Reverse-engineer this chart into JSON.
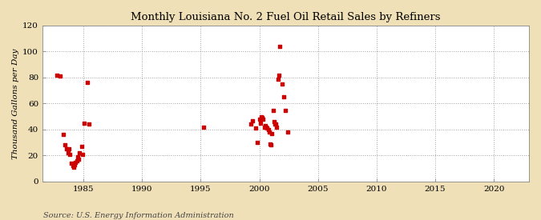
{
  "title": "Monthly Louisiana No. 2 Fuel Oil Retail Sales by Refiners",
  "ylabel": "Thousand Gallons per Day",
  "source": "Source: U.S. Energy Information Administration",
  "fig_bg_color": "#f0e0b8",
  "plot_bg_color": "#ffffff",
  "dot_color": "#cc0000",
  "xlim": [
    1981.5,
    2023
  ],
  "ylim": [
    0,
    120
  ],
  "yticks": [
    0,
    20,
    40,
    60,
    80,
    100,
    120
  ],
  "xticks": [
    1985,
    1990,
    1995,
    2000,
    2005,
    2010,
    2015,
    2020
  ],
  "x": [
    1982.75,
    1983.0,
    1983.25,
    1983.42,
    1983.58,
    1983.67,
    1983.75,
    1983.83,
    1984.0,
    1984.08,
    1984.17,
    1984.25,
    1984.33,
    1984.42,
    1984.5,
    1984.58,
    1984.67,
    1984.83,
    1984.92,
    1985.08,
    1985.33,
    1985.5,
    1995.25,
    1999.25,
    1999.42,
    1999.67,
    1999.83,
    2000.0,
    2000.08,
    2000.17,
    2000.25,
    2000.33,
    2000.42,
    2000.5,
    2000.58,
    2000.67,
    2000.75,
    2000.83,
    2000.92,
    2001.0,
    2001.08,
    2001.17,
    2001.25,
    2001.33,
    2001.42,
    2001.5,
    2001.58,
    2001.67,
    2001.75,
    2001.92,
    2002.08,
    2002.25,
    2002.42
  ],
  "y": [
    82,
    81,
    36,
    28,
    25,
    22,
    25,
    21,
    14,
    12,
    11,
    13,
    15,
    16,
    19,
    17,
    22,
    27,
    21,
    45,
    76,
    44,
    42,
    44,
    47,
    41,
    30,
    48,
    45,
    50,
    49,
    48,
    42,
    43,
    42,
    41,
    40,
    38,
    29,
    28,
    37,
    55,
    46,
    44,
    44,
    42,
    79,
    82,
    104,
    75,
    65,
    55,
    38
  ]
}
